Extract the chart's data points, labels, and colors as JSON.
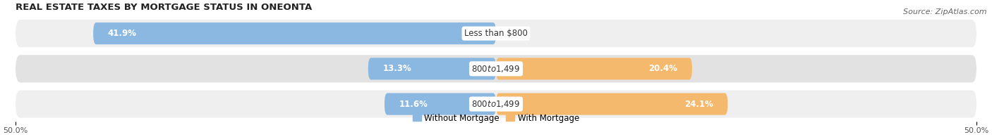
{
  "title": "REAL ESTATE TAXES BY MORTGAGE STATUS IN ONEONTA",
  "source": "Source: ZipAtlas.com",
  "rows": [
    {
      "label": "Less than $800",
      "without": 41.9,
      "with": 0.0
    },
    {
      "label": "$800 to $1,499",
      "without": 13.3,
      "with": 20.4
    },
    {
      "label": "$800 to $1,499",
      "without": 11.6,
      "with": 24.1
    }
  ],
  "color_without": "#8bb8e0",
  "color_with": "#f5b96e",
  "bar_height": 0.62,
  "row_bg_light": "#efefef",
  "row_bg_dark": "#e2e2e2",
  "xlim": [
    -50,
    50
  ],
  "legend_without": "Without Mortgage",
  "legend_with": "With Mortgage",
  "title_fontsize": 9.5,
  "source_fontsize": 8,
  "label_fontsize": 8.5,
  "value_fontsize": 8.5,
  "tick_fontsize": 8
}
